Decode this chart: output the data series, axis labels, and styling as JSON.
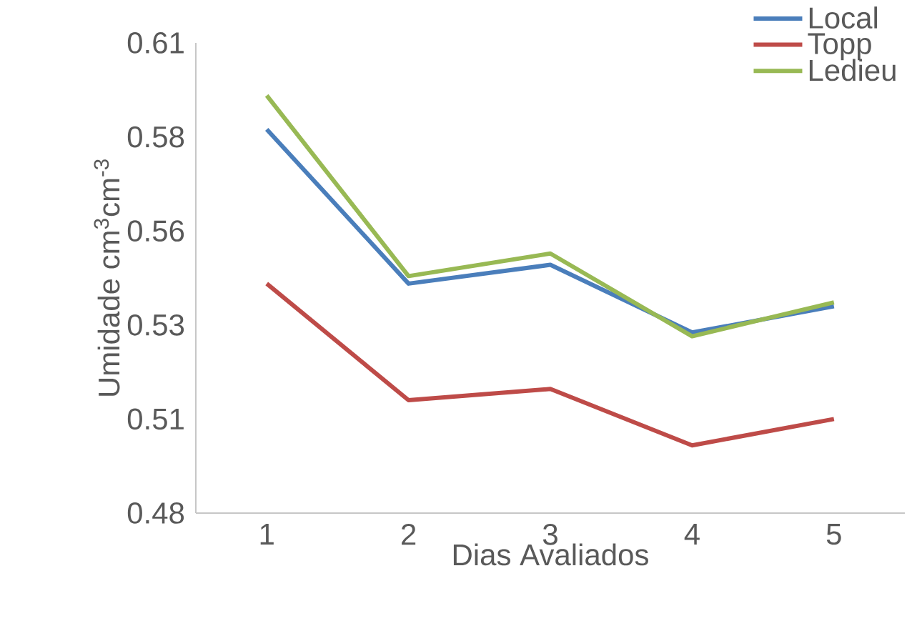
{
  "chart_data": {
    "type": "line",
    "xlabel": "Dias Avaliados",
    "ylabel": "Umidade cm$^{3}$cm$^{-3}$",
    "categories": [
      "1",
      "2",
      "3",
      "4",
      "5"
    ],
    "series": [
      {
        "name": "Local",
        "color": "#4a7ebb",
        "values": [
          0.582,
          0.541,
          0.546,
          0.528,
          0.535
        ]
      },
      {
        "name": "Topp",
        "color": "#be4b48",
        "values": [
          0.541,
          0.51,
          0.513,
          0.498,
          0.505
        ]
      },
      {
        "name": "Ledieu",
        "color": "#98b954",
        "values": [
          0.591,
          0.543,
          0.549,
          0.527,
          0.536
        ]
      }
    ],
    "ylim": [
      0.48,
      0.605
    ],
    "yticks": [
      0.48,
      {
        "value": 0.505,
        "label": "0.51"
      },
      0.53,
      {
        "value": 0.555,
        "label": "0.56"
      },
      0.58,
      {
        "value": 0.605,
        "label": "0.61"
      }
    ],
    "grid": false,
    "legend": "top right",
    "marker": "none",
    "line_style": "solid"
  }
}
